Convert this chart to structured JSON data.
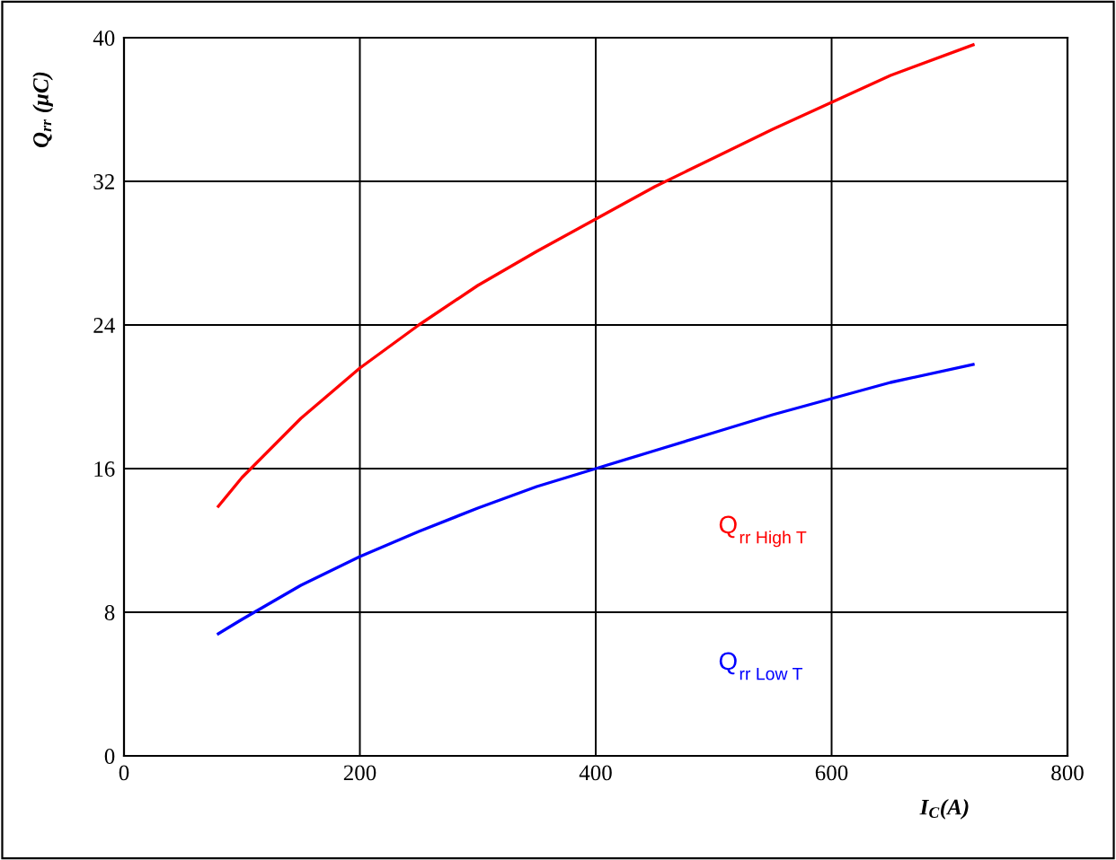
{
  "chart_data": {
    "type": "line",
    "xlabel": "I$_{C}$(A)",
    "ylabel": "Q$_{rr}$ (μC)",
    "xlim": [
      0,
      800
    ],
    "xticks": [
      0,
      200,
      400,
      600,
      800
    ],
    "ylim": [
      0,
      40
    ],
    "yticks": [
      0,
      8,
      16,
      24,
      32,
      40
    ],
    "grid": true,
    "legend": false,
    "marker": "none",
    "line_style": "solid",
    "x": [
      80,
      100,
      150,
      200,
      250,
      300,
      350,
      400,
      450,
      500,
      550,
      600,
      650,
      720
    ],
    "series": [
      {
        "name": "Q$_{rr High T}$",
        "color": "#ff0000",
        "values": [
          13.9,
          15.5,
          18.8,
          21.6,
          24.0,
          26.2,
          28.1,
          29.9,
          31.7,
          33.3,
          34.9,
          36.4,
          37.9,
          39.6
        ]
      },
      {
        "name": "Q$_{rr Low T}$",
        "color": "#0000ff",
        "values": [
          6.8,
          7.6,
          9.5,
          11.1,
          12.5,
          13.8,
          15.0,
          16.0,
          17.0,
          18.0,
          19.0,
          19.9,
          20.8,
          21.8
        ]
      }
    ]
  }
}
